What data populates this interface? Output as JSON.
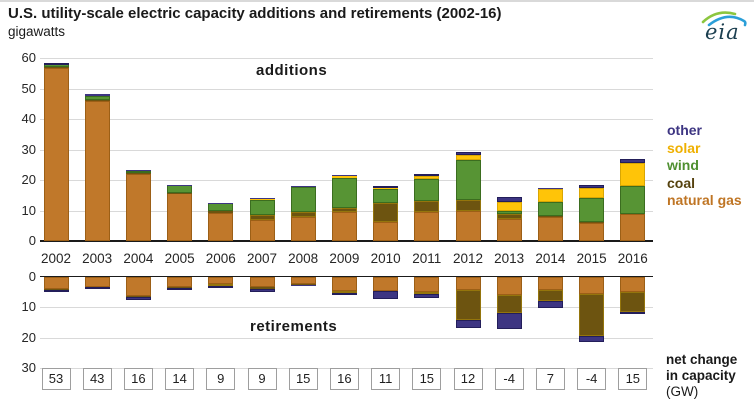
{
  "header": {
    "title": "U.S. utility-scale electric capacity additions and retirements (2002-16)",
    "subtitle": "gigawatts",
    "logo_text": "eia"
  },
  "legend": {
    "position": "right",
    "items": [
      {
        "label": "other",
        "color": "#3d3582"
      },
      {
        "label": "solar",
        "color": "#efb000"
      },
      {
        "label": "wind",
        "color": "#4e8f2f"
      },
      {
        "label": "coal",
        "color": "#55420e"
      },
      {
        "label": "natural gas",
        "color": "#bf7524"
      }
    ]
  },
  "chart_data": {
    "type": "bar",
    "stacked": true,
    "grid": true,
    "categories": [
      "2002",
      "2003",
      "2004",
      "2005",
      "2006",
      "2007",
      "2008",
      "2009",
      "2010",
      "2011",
      "2012",
      "2013",
      "2014",
      "2015",
      "2016"
    ],
    "panels": [
      {
        "name": "additions",
        "label": "additions",
        "direction": "up",
        "ylim": [
          0,
          60
        ],
        "yticks": [
          0,
          10,
          20,
          30,
          40,
          50,
          60
        ],
        "series": [
          {
            "name": "natural gas",
            "color": "#c0782a",
            "border": "#9c5f16",
            "values": [
              56.8,
              45.9,
              22.0,
              15.6,
              9.2,
              7.0,
              8.0,
              9.6,
              6.2,
              9.5,
              9.8,
              7.3,
              7.9,
              6.0,
              9.0
            ]
          },
          {
            "name": "coal",
            "color": "#6d5410",
            "border": "#94750c",
            "values": [
              0.3,
              0.3,
              0.2,
              0.2,
              0.5,
              1.4,
              1.4,
              1.2,
              6.2,
              3.5,
              3.6,
              1.5,
              0.2,
              0.1,
              0.0
            ]
          },
          {
            "name": "wind",
            "color": "#579434",
            "border": "#3b6d1f",
            "values": [
              0.8,
              1.5,
              0.6,
              2.4,
              2.6,
              5.2,
              8.4,
              10.0,
              4.6,
              7.3,
              13.0,
              1.0,
              4.7,
              8.1,
              9.0
            ]
          },
          {
            "name": "solar",
            "color": "#ffc408",
            "border": "#d9a602",
            "values": [
              0.0,
              0.0,
              0.0,
              0.0,
              0.0,
              0.2,
              0.1,
              0.4,
              0.3,
              1.0,
              1.8,
              2.9,
              4.3,
              3.2,
              7.5
            ]
          },
          {
            "name": "other",
            "color": "#3d3582",
            "border": "#231e5a",
            "values": [
              0.6,
              0.4,
              0.5,
              0.2,
              0.3,
              0.3,
              0.1,
              0.5,
              0.7,
              0.7,
              0.9,
              1.6,
              0.4,
              1.0,
              1.5
            ]
          }
        ]
      },
      {
        "name": "retirements",
        "label": "retirements",
        "direction": "down",
        "ylim": [
          0,
          30
        ],
        "yticks": [
          0,
          10,
          20,
          30
        ],
        "series": [
          {
            "name": "natural gas",
            "color": "#c0782a",
            "border": "#9c5f16",
            "values": [
              4.0,
              3.3,
              6.5,
              3.4,
              2.4,
              3.6,
              2.3,
              4.7,
              4.6,
              5.0,
              4.3,
              6.1,
              4.3,
              5.6,
              5.0
            ]
          },
          {
            "name": "coal",
            "color": "#6d5410",
            "border": "#94750c",
            "values": [
              0.3,
              0.2,
              0.3,
              0.3,
              0.7,
              0.5,
              0.5,
              0.6,
              0.3,
              0.6,
              10.0,
              6.0,
              3.6,
              13.8,
              6.5
            ]
          },
          {
            "name": "other",
            "color": "#3d3582",
            "border": "#231e5a",
            "values": [
              0.9,
              0.7,
              0.8,
              0.8,
              0.6,
              0.9,
              0.4,
              0.7,
              2.4,
              1.4,
              2.7,
              5.2,
              2.3,
              2.0,
              0.8
            ]
          }
        ]
      }
    ],
    "net_change": {
      "values": [
        53,
        43,
        16,
        14,
        9,
        9,
        15,
        16,
        11,
        15,
        12,
        -4,
        7,
        -4,
        15
      ],
      "caption_lines": [
        "net change",
        "in capacity",
        "(GW)"
      ]
    }
  }
}
